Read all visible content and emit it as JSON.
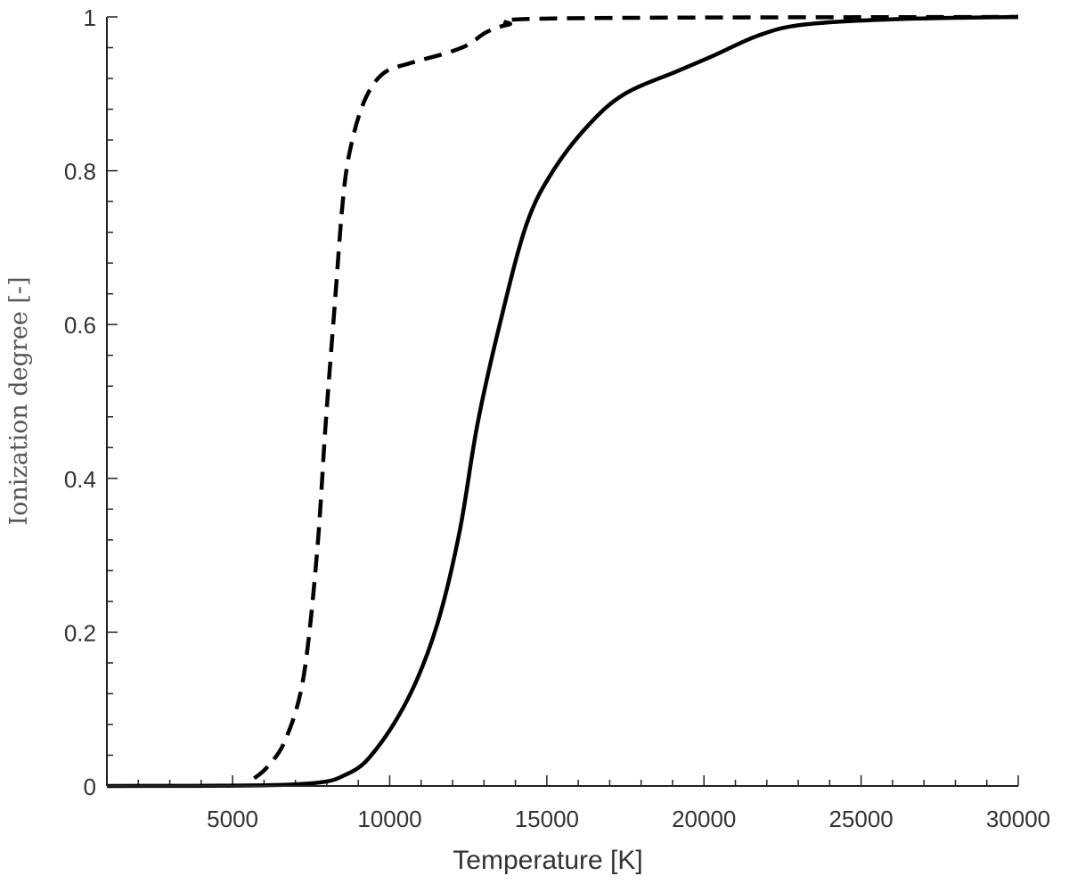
{
  "chart_data": {
    "type": "line",
    "title": "",
    "xlabel": "Temperature [K]",
    "ylabel": "Ionization degree [-]",
    "xlim": [
      1000,
      30000
    ],
    "ylim": [
      0,
      1
    ],
    "xticks": [
      5000,
      10000,
      15000,
      20000,
      25000,
      30000
    ],
    "xtick_labels": [
      "5000",
      "10000",
      "15000",
      "20000",
      "25000",
      "30000"
    ],
    "yticks": [
      0,
      0.2,
      0.4,
      0.6,
      0.8,
      1
    ],
    "ytick_labels": [
      "0",
      "0.2",
      "0.4",
      "0.6",
      "0.8",
      "1"
    ],
    "x_minor_step": 1000,
    "y_minor_step": 0.04,
    "grid": false,
    "series": [
      {
        "name": "solid",
        "style": "solid",
        "color": "#000000",
        "x": [
          1000,
          6970,
          8670,
          9610,
          10660,
          11510,
          12220,
          12790,
          13500,
          14350,
          15200,
          16340,
          17480,
          19180,
          20320,
          21740,
          23160,
          26000,
          30000
        ],
        "y": [
          0,
          0.002,
          0.016,
          0.05,
          0.12,
          0.21,
          0.33,
          0.47,
          0.6,
          0.73,
          0.8,
          0.86,
          0.9,
          0.93,
          0.95,
          0.976,
          0.99,
          0.997,
          1
        ]
      },
      {
        "name": "dashed",
        "style": "dashed",
        "color": "#000000",
        "x": [
          5690,
          6110,
          6680,
          7250,
          7680,
          7960,
          8240,
          8530,
          8810,
          9240,
          9810,
          10660,
          11800,
          12500,
          13070,
          13780,
          15200,
          30000
        ],
        "y": [
          0.01,
          0.025,
          0.06,
          0.14,
          0.3,
          0.47,
          0.62,
          0.77,
          0.84,
          0.895,
          0.927,
          0.94,
          0.953,
          0.964,
          0.98,
          0.99,
          0.998,
          1
        ]
      }
    ]
  }
}
